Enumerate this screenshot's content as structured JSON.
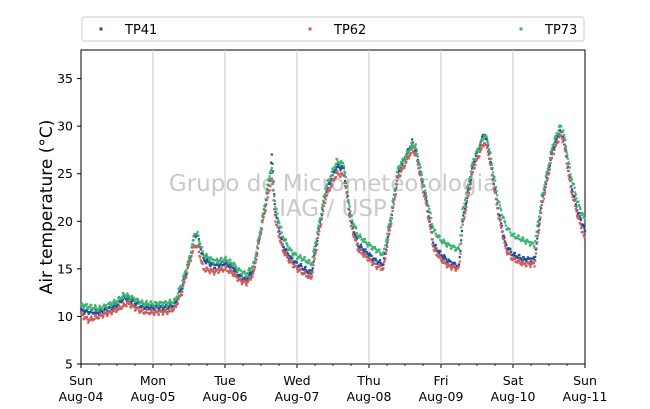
{
  "chart_data": {
    "type": "scatter",
    "ylabel": "Air temperature (°C)",
    "xlabel": "",
    "ylim": [
      5,
      38
    ],
    "xlim": [
      0,
      7
    ],
    "yticks": [
      5,
      10,
      15,
      20,
      25,
      30,
      35
    ],
    "xticks": [
      {
        "day": "Sun",
        "date": "Aug-04"
      },
      {
        "day": "Mon",
        "date": "Aug-05"
      },
      {
        "day": "Tue",
        "date": "Aug-06"
      },
      {
        "day": "Wed",
        "date": "Aug-07"
      },
      {
        "day": "Thu",
        "date": "Aug-08"
      },
      {
        "day": "Fri",
        "date": "Aug-09"
      },
      {
        "day": "Sat",
        "date": "Aug-10"
      },
      {
        "day": "Sun",
        "date": "Aug-11"
      }
    ],
    "x_unit": "days since Aug-04 00:00",
    "grid": "vertical",
    "legend_position": "top",
    "watermark": [
      "Grupo de Micrometeorologia",
      "IAG / USP"
    ],
    "series": [
      {
        "name": "TP41",
        "color": "#1f4e9a",
        "points": [
          [
            0.0,
            10.6
          ],
          [
            0.25,
            10.4
          ],
          [
            0.5,
            11.2
          ],
          [
            0.6,
            12.0
          ],
          [
            0.75,
            11.5
          ],
          [
            0.85,
            11.0
          ],
          [
            1.0,
            10.9
          ],
          [
            1.2,
            11.0
          ],
          [
            1.3,
            11.2
          ],
          [
            1.4,
            13.0
          ],
          [
            1.5,
            15.5
          ],
          [
            1.58,
            18.6
          ],
          [
            1.62,
            18.5
          ],
          [
            1.7,
            16.0
          ],
          [
            1.85,
            15.3
          ],
          [
            2.0,
            15.6
          ],
          [
            2.1,
            15.2
          ],
          [
            2.2,
            14.2
          ],
          [
            2.3,
            13.8
          ],
          [
            2.4,
            15.0
          ],
          [
            2.5,
            19.0
          ],
          [
            2.62,
            24.5
          ],
          [
            2.65,
            27.0
          ],
          [
            2.7,
            21.0
          ],
          [
            2.8,
            17.5
          ],
          [
            2.9,
            16.2
          ],
          [
            3.0,
            15.5
          ],
          [
            3.1,
            15.0
          ],
          [
            3.2,
            14.5
          ],
          [
            3.3,
            19.0
          ],
          [
            3.4,
            23.0
          ],
          [
            3.55,
            25.8
          ],
          [
            3.65,
            25.5
          ],
          [
            3.75,
            20.0
          ],
          [
            3.85,
            17.5
          ],
          [
            4.0,
            16.5
          ],
          [
            4.1,
            15.8
          ],
          [
            4.2,
            15.5
          ],
          [
            4.3,
            20.0
          ],
          [
            4.4,
            25.0
          ],
          [
            4.6,
            28.3
          ],
          [
            4.65,
            27.5
          ],
          [
            4.8,
            22.0
          ],
          [
            4.9,
            17.5
          ],
          [
            5.0,
            16.5
          ],
          [
            5.1,
            15.8
          ],
          [
            5.25,
            15.2
          ],
          [
            5.3,
            20.0
          ],
          [
            5.45,
            26.0
          ],
          [
            5.6,
            29.3
          ],
          [
            5.65,
            28.0
          ],
          [
            5.8,
            21.0
          ],
          [
            5.9,
            17.5
          ],
          [
            6.0,
            16.5
          ],
          [
            6.15,
            16.0
          ],
          [
            6.3,
            16.0
          ],
          [
            6.4,
            22.0
          ],
          [
            6.55,
            27.5
          ],
          [
            6.65,
            29.5
          ],
          [
            6.7,
            29.0
          ],
          [
            6.8,
            24.0
          ],
          [
            6.9,
            21.0
          ],
          [
            7.0,
            19.0
          ]
        ]
      },
      {
        "name": "TP62",
        "color": "#cd5c5c",
        "points": [
          [
            0.0,
            10.2
          ],
          [
            0.1,
            9.6
          ],
          [
            0.25,
            10.0
          ],
          [
            0.5,
            10.7
          ],
          [
            0.65,
            11.4
          ],
          [
            0.75,
            10.9
          ],
          [
            0.85,
            10.5
          ],
          [
            1.0,
            10.4
          ],
          [
            1.2,
            10.5
          ],
          [
            1.3,
            10.8
          ],
          [
            1.4,
            12.5
          ],
          [
            1.5,
            15.5
          ],
          [
            1.58,
            17.5
          ],
          [
            1.62,
            17.3
          ],
          [
            1.7,
            15.0
          ],
          [
            1.85,
            14.7
          ],
          [
            2.0,
            15.0
          ],
          [
            2.1,
            14.6
          ],
          [
            2.2,
            13.8
          ],
          [
            2.3,
            13.5
          ],
          [
            2.4,
            14.5
          ],
          [
            2.5,
            19.0
          ],
          [
            2.62,
            23.5
          ],
          [
            2.65,
            24.5
          ],
          [
            2.7,
            20.0
          ],
          [
            2.8,
            17.0
          ],
          [
            2.9,
            15.8
          ],
          [
            3.0,
            15.0
          ],
          [
            3.1,
            14.5
          ],
          [
            3.2,
            14.0
          ],
          [
            3.3,
            18.5
          ],
          [
            3.4,
            22.5
          ],
          [
            3.55,
            25.0
          ],
          [
            3.65,
            24.8
          ],
          [
            3.75,
            19.5
          ],
          [
            3.85,
            17.0
          ],
          [
            4.0,
            16.0
          ],
          [
            4.1,
            15.3
          ],
          [
            4.2,
            15.0
          ],
          [
            4.3,
            19.5
          ],
          [
            4.4,
            24.5
          ],
          [
            4.6,
            27.5
          ],
          [
            4.65,
            27.0
          ],
          [
            4.8,
            21.5
          ],
          [
            4.9,
            17.0
          ],
          [
            5.0,
            16.0
          ],
          [
            5.1,
            15.3
          ],
          [
            5.25,
            15.0
          ],
          [
            5.3,
            19.5
          ],
          [
            5.45,
            25.5
          ],
          [
            5.6,
            28.3
          ],
          [
            5.65,
            27.5
          ],
          [
            5.8,
            20.5
          ],
          [
            5.9,
            17.0
          ],
          [
            6.0,
            16.0
          ],
          [
            6.15,
            15.5
          ],
          [
            6.3,
            15.5
          ],
          [
            6.4,
            21.5
          ],
          [
            6.55,
            27.0
          ],
          [
            6.65,
            29.0
          ],
          [
            6.7,
            28.5
          ],
          [
            6.8,
            23.5
          ],
          [
            6.9,
            20.5
          ],
          [
            7.0,
            18.0
          ]
        ]
      },
      {
        "name": "TP73",
        "color": "#3cb371",
        "points": [
          [
            0.0,
            11.2
          ],
          [
            0.25,
            10.8
          ],
          [
            0.5,
            11.6
          ],
          [
            0.6,
            12.3
          ],
          [
            0.75,
            11.8
          ],
          [
            0.85,
            11.4
          ],
          [
            1.0,
            11.3
          ],
          [
            1.2,
            11.4
          ],
          [
            1.3,
            11.6
          ],
          [
            1.4,
            13.5
          ],
          [
            1.5,
            16.0
          ],
          [
            1.58,
            18.8
          ],
          [
            1.62,
            18.6
          ],
          [
            1.7,
            16.5
          ],
          [
            1.85,
            15.8
          ],
          [
            2.0,
            16.0
          ],
          [
            2.1,
            15.6
          ],
          [
            2.2,
            14.8
          ],
          [
            2.3,
            14.4
          ],
          [
            2.4,
            15.5
          ],
          [
            2.5,
            19.5
          ],
          [
            2.62,
            25.0
          ],
          [
            2.65,
            25.5
          ],
          [
            2.7,
            21.5
          ],
          [
            2.8,
            18.5
          ],
          [
            2.9,
            17.0
          ],
          [
            3.0,
            16.3
          ],
          [
            3.1,
            16.0
          ],
          [
            3.2,
            15.5
          ],
          [
            3.3,
            19.5
          ],
          [
            3.4,
            23.5
          ],
          [
            3.55,
            26.3
          ],
          [
            3.65,
            26.0
          ],
          [
            3.75,
            20.5
          ],
          [
            3.85,
            18.5
          ],
          [
            4.0,
            17.5
          ],
          [
            4.1,
            17.0
          ],
          [
            4.2,
            16.5
          ],
          [
            4.3,
            20.5
          ],
          [
            4.4,
            25.5
          ],
          [
            4.6,
            28.0
          ],
          [
            4.65,
            27.8
          ],
          [
            4.8,
            22.5
          ],
          [
            4.9,
            19.0
          ],
          [
            5.0,
            18.0
          ],
          [
            5.1,
            17.5
          ],
          [
            5.25,
            17.0
          ],
          [
            5.3,
            21.0
          ],
          [
            5.45,
            26.5
          ],
          [
            5.6,
            29.0
          ],
          [
            5.65,
            28.5
          ],
          [
            5.8,
            22.0
          ],
          [
            5.9,
            19.5
          ],
          [
            6.0,
            18.5
          ],
          [
            6.15,
            18.0
          ],
          [
            6.3,
            17.5
          ],
          [
            6.4,
            22.5
          ],
          [
            6.55,
            28.0
          ],
          [
            6.65,
            30.0
          ],
          [
            6.7,
            29.5
          ],
          [
            6.8,
            25.0
          ],
          [
            6.9,
            22.0
          ],
          [
            7.0,
            20.0
          ]
        ]
      }
    ]
  }
}
